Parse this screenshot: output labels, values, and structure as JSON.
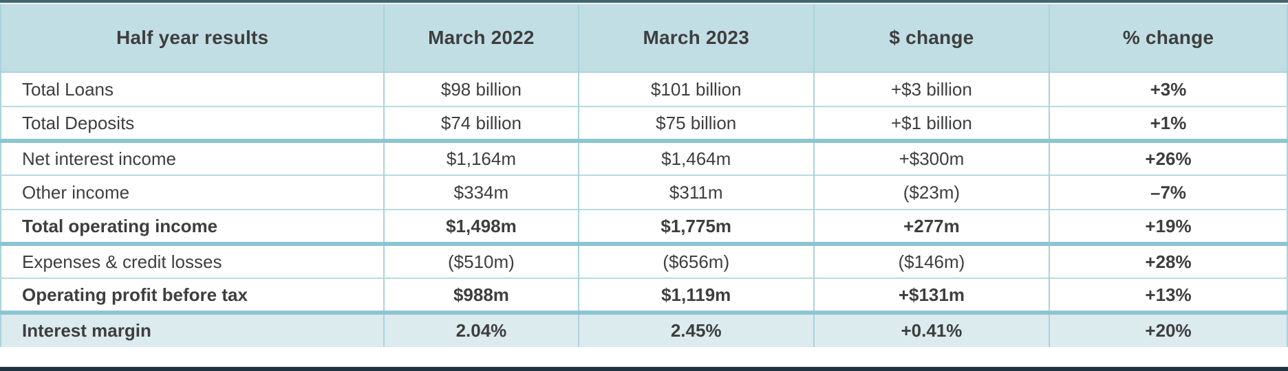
{
  "table": {
    "columns": [
      "Half year results",
      "March 2022",
      "March 2023",
      "$ change",
      "% change"
    ],
    "rows": [
      {
        "cells": [
          "Total Loans",
          "$98 billion",
          "$101 billion",
          "+$3 billion",
          "+3%"
        ],
        "bold": false,
        "highlight": false,
        "group_start": false
      },
      {
        "cells": [
          "Total Deposits",
          "$74 billion",
          "$75 billion",
          "+$1 billion",
          "+1%"
        ],
        "bold": false,
        "highlight": false,
        "group_start": false
      },
      {
        "cells": [
          "Net interest income",
          "$1,164m",
          "$1,464m",
          "+$300m",
          "+26%"
        ],
        "bold": false,
        "highlight": false,
        "group_start": true
      },
      {
        "cells": [
          "Other income",
          "$334m",
          "$311m",
          "($23m)",
          "–7%"
        ],
        "bold": false,
        "highlight": false,
        "group_start": false
      },
      {
        "cells": [
          "Total operating income",
          "$1,498m",
          "$1,775m",
          "+277m",
          "+19%"
        ],
        "bold": true,
        "highlight": false,
        "group_start": false
      },
      {
        "cells": [
          "Expenses & credit losses",
          "($510m)",
          "($656m)",
          "($146m)",
          "+28%"
        ],
        "bold": false,
        "highlight": false,
        "group_start": true
      },
      {
        "cells": [
          "Operating profit before tax",
          "$988m",
          "$1,119m",
          "+$131m",
          "+13%"
        ],
        "bold": true,
        "highlight": false,
        "group_start": false
      },
      {
        "cells": [
          "Interest margin",
          "2.04%",
          "2.45%",
          "+0.41%",
          "+20%"
        ],
        "bold": true,
        "highlight": true,
        "group_start": true
      }
    ]
  },
  "colors": {
    "header_bg": "#c2dee5",
    "highlight_row_bg": "#dcebee",
    "grid_line": "#a9d3dc",
    "grid_line_thin": "#b7dae1",
    "group_separator": "#8cc5d2",
    "top_border": "#40666f",
    "bottom_border": "#1d3340",
    "text": "#3e3e3e"
  }
}
